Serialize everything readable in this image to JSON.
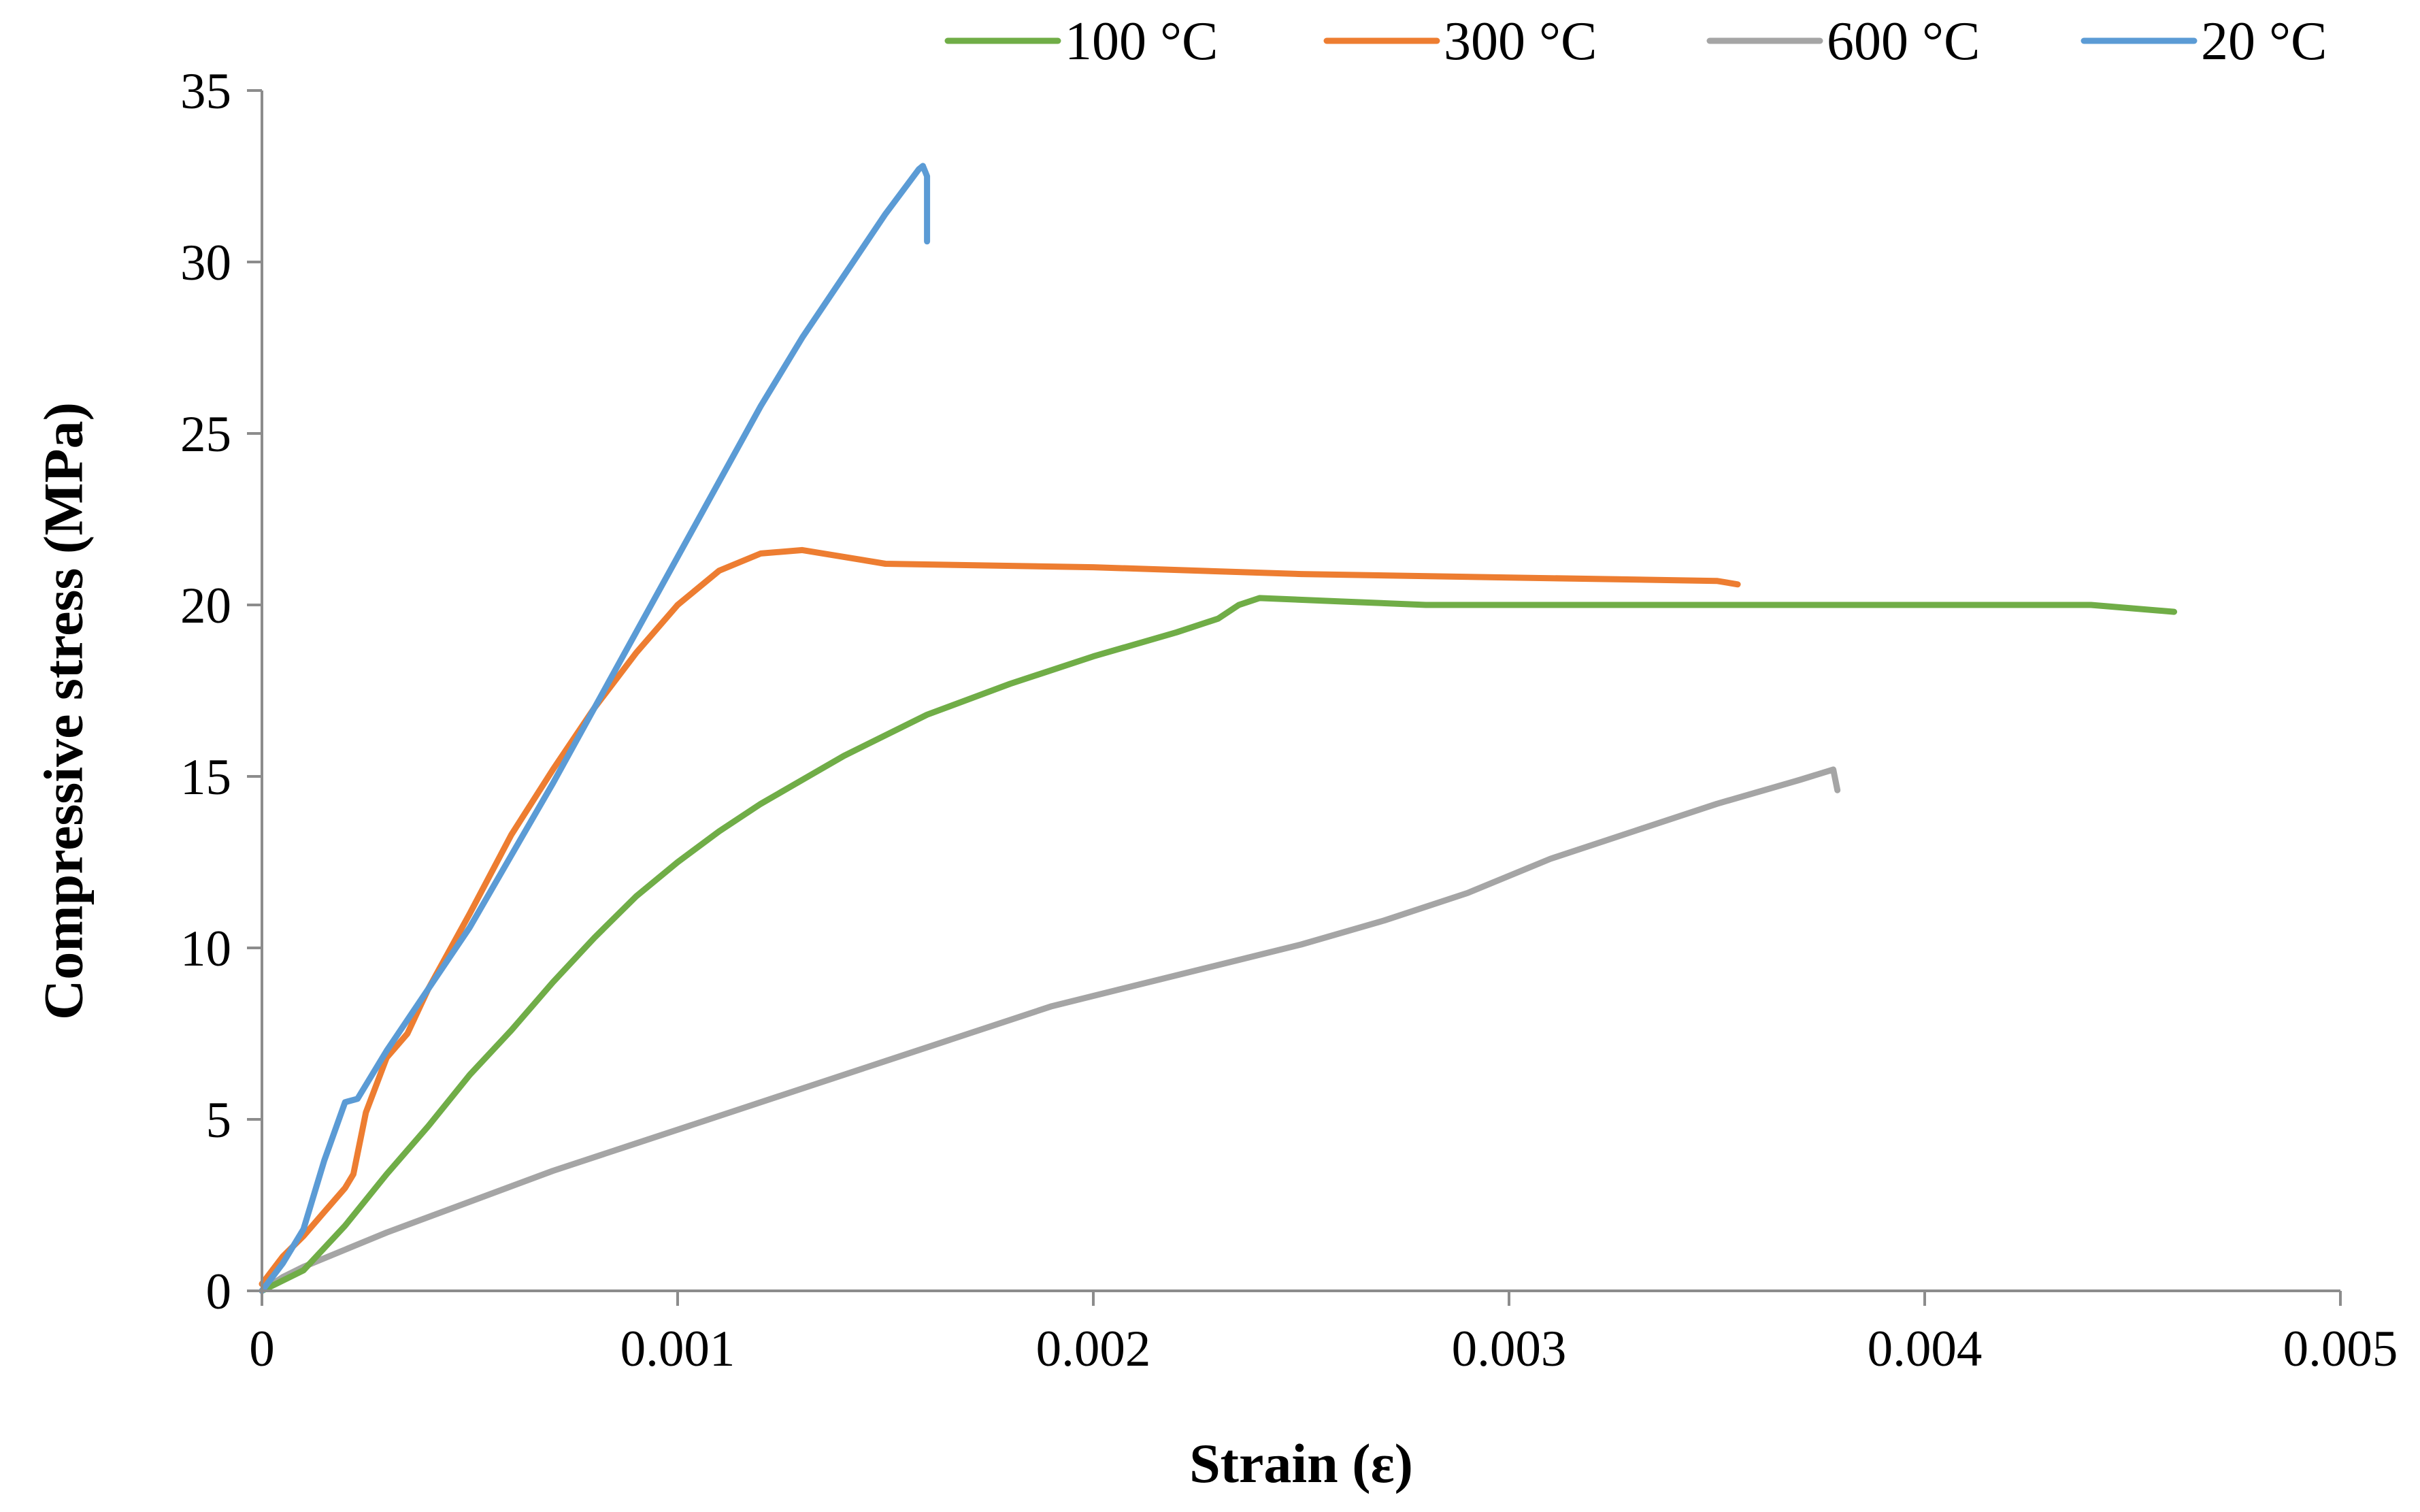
{
  "chart_data": {
    "type": "line",
    "title": "",
    "xlabel": "Strain (ε)",
    "ylabel": "Compressive stress (MPa)",
    "xlim": [
      0,
      0.005
    ],
    "ylim": [
      0,
      35
    ],
    "x_ticks": [
      0,
      0.001,
      0.002,
      0.003,
      0.004,
      0.005
    ],
    "x_tick_labels": [
      "0",
      "0.001",
      "0.002",
      "0.003",
      "0.004",
      "0.005"
    ],
    "y_ticks": [
      0,
      5,
      10,
      15,
      20,
      25,
      30,
      35
    ],
    "y_tick_labels": [
      "0",
      "5",
      "10",
      "15",
      "20",
      "25",
      "30",
      "35"
    ],
    "grid": false,
    "legend_position": "top",
    "series": [
      {
        "name": "100 °C",
        "color": "#70ad47",
        "points": [
          [
            0,
            0
          ],
          [
            0.0001,
            0.6
          ],
          [
            0.0002,
            1.9
          ],
          [
            0.0003,
            3.4
          ],
          [
            0.0004,
            4.8
          ],
          [
            0.0005,
            6.3
          ],
          [
            0.0006,
            7.6
          ],
          [
            0.0007,
            9.0
          ],
          [
            0.0008,
            10.3
          ],
          [
            0.0009,
            11.5
          ],
          [
            0.001,
            12.5
          ],
          [
            0.0011,
            13.4
          ],
          [
            0.0012,
            14.2
          ],
          [
            0.0014,
            15.6
          ],
          [
            0.0016,
            16.8
          ],
          [
            0.0018,
            17.7
          ],
          [
            0.002,
            18.5
          ],
          [
            0.0022,
            19.2
          ],
          [
            0.0023,
            19.6
          ],
          [
            0.00235,
            20.0
          ],
          [
            0.0024,
            20.2
          ],
          [
            0.0026,
            20.1
          ],
          [
            0.0028,
            20.0
          ],
          [
            0.003,
            20.0
          ],
          [
            0.0035,
            20.0
          ],
          [
            0.004,
            20.0
          ],
          [
            0.0044,
            20.0
          ],
          [
            0.0046,
            19.8
          ]
        ]
      },
      {
        "name": "300 °C",
        "color": "#ed7d31",
        "points": [
          [
            0,
            0.2
          ],
          [
            5e-05,
            1.0
          ],
          [
            0.0001,
            1.6
          ],
          [
            0.00015,
            2.3
          ],
          [
            0.0002,
            3.0
          ],
          [
            0.00022,
            3.4
          ],
          [
            0.00025,
            5.2
          ],
          [
            0.0003,
            6.8
          ],
          [
            0.00035,
            7.5
          ],
          [
            0.0004,
            8.8
          ],
          [
            0.0005,
            11.0
          ],
          [
            0.0006,
            13.3
          ],
          [
            0.0007,
            15.2
          ],
          [
            0.0008,
            17.0
          ],
          [
            0.0009,
            18.6
          ],
          [
            0.001,
            20.0
          ],
          [
            0.0011,
            21.0
          ],
          [
            0.0012,
            21.5
          ],
          [
            0.0013,
            21.6
          ],
          [
            0.0014,
            21.4
          ],
          [
            0.0015,
            21.2
          ],
          [
            0.002,
            21.1
          ],
          [
            0.0025,
            20.9
          ],
          [
            0.003,
            20.8
          ],
          [
            0.0035,
            20.7
          ],
          [
            0.00355,
            20.6
          ]
        ]
      },
      {
        "name": "600 °C",
        "color": "#a5a5a5",
        "points": [
          [
            0,
            0
          ],
          [
            5e-05,
            0.4
          ],
          [
            0.0001,
            0.7
          ],
          [
            0.0002,
            1.2
          ],
          [
            0.0003,
            1.7
          ],
          [
            0.0005,
            2.6
          ],
          [
            0.0007,
            3.5
          ],
          [
            0.0009,
            4.3
          ],
          [
            0.0011,
            5.1
          ],
          [
            0.0013,
            5.9
          ],
          [
            0.0015,
            6.7
          ],
          [
            0.0017,
            7.5
          ],
          [
            0.0019,
            8.3
          ],
          [
            0.0021,
            8.9
          ],
          [
            0.0023,
            9.5
          ],
          [
            0.0025,
            10.1
          ],
          [
            0.0027,
            10.8
          ],
          [
            0.0029,
            11.6
          ],
          [
            0.0031,
            12.6
          ],
          [
            0.0033,
            13.4
          ],
          [
            0.0035,
            14.2
          ],
          [
            0.0037,
            14.9
          ],
          [
            0.00378,
            15.2
          ],
          [
            0.00379,
            14.6
          ]
        ]
      },
      {
        "name": "20 °C",
        "color": "#5b9bd5",
        "points": [
          [
            0,
            0
          ],
          [
            5e-05,
            0.8
          ],
          [
            0.0001,
            1.8
          ],
          [
            0.00015,
            3.8
          ],
          [
            0.0002,
            5.5
          ],
          [
            0.00023,
            5.6
          ],
          [
            0.0003,
            7.0
          ],
          [
            0.0004,
            8.8
          ],
          [
            0.0005,
            10.6
          ],
          [
            0.0006,
            12.7
          ],
          [
            0.0007,
            14.8
          ],
          [
            0.0008,
            17.0
          ],
          [
            0.0009,
            19.2
          ],
          [
            0.001,
            21.4
          ],
          [
            0.0011,
            23.6
          ],
          [
            0.0012,
            25.8
          ],
          [
            0.0013,
            27.8
          ],
          [
            0.0014,
            29.6
          ],
          [
            0.0015,
            31.4
          ],
          [
            0.00158,
            32.7
          ],
          [
            0.00159,
            32.8
          ],
          [
            0.0016,
            32.5
          ],
          [
            0.0016,
            30.6
          ]
        ]
      }
    ]
  }
}
